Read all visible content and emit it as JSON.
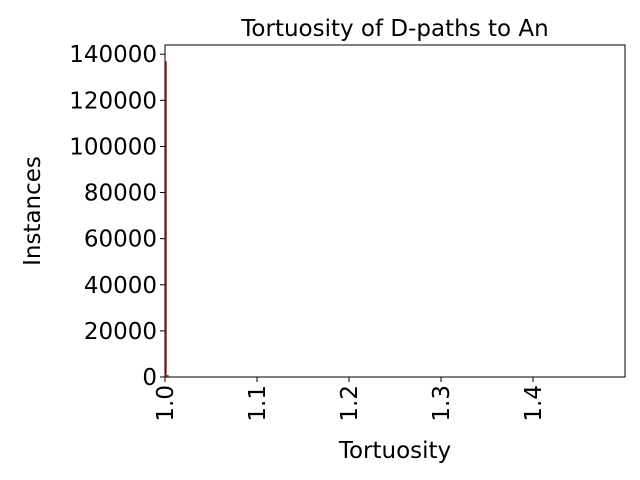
{
  "chart_data": {
    "type": "bar",
    "title": "Tortuosity of D-paths to An",
    "xlabel": "Tortuosity",
    "ylabel": "Instances",
    "xlim": [
      1.0,
      1.5
    ],
    "ylim": [
      0,
      144000
    ],
    "x_ticks": [
      "1.0",
      "1.1",
      "1.2",
      "1.3",
      "1.4"
    ],
    "y_ticks": [
      "0",
      "20000",
      "40000",
      "60000",
      "80000",
      "100000",
      "120000",
      "140000"
    ],
    "bar_color": "#d62728",
    "bins": [
      {
        "x0": 1.0,
        "x1": 1.002,
        "value": 137000
      },
      {
        "x0": 1.002,
        "x1": 1.004,
        "value": 900
      },
      {
        "x0": 1.004,
        "x1": 1.006,
        "value": 200
      }
    ],
    "grid": false,
    "legend": false
  }
}
